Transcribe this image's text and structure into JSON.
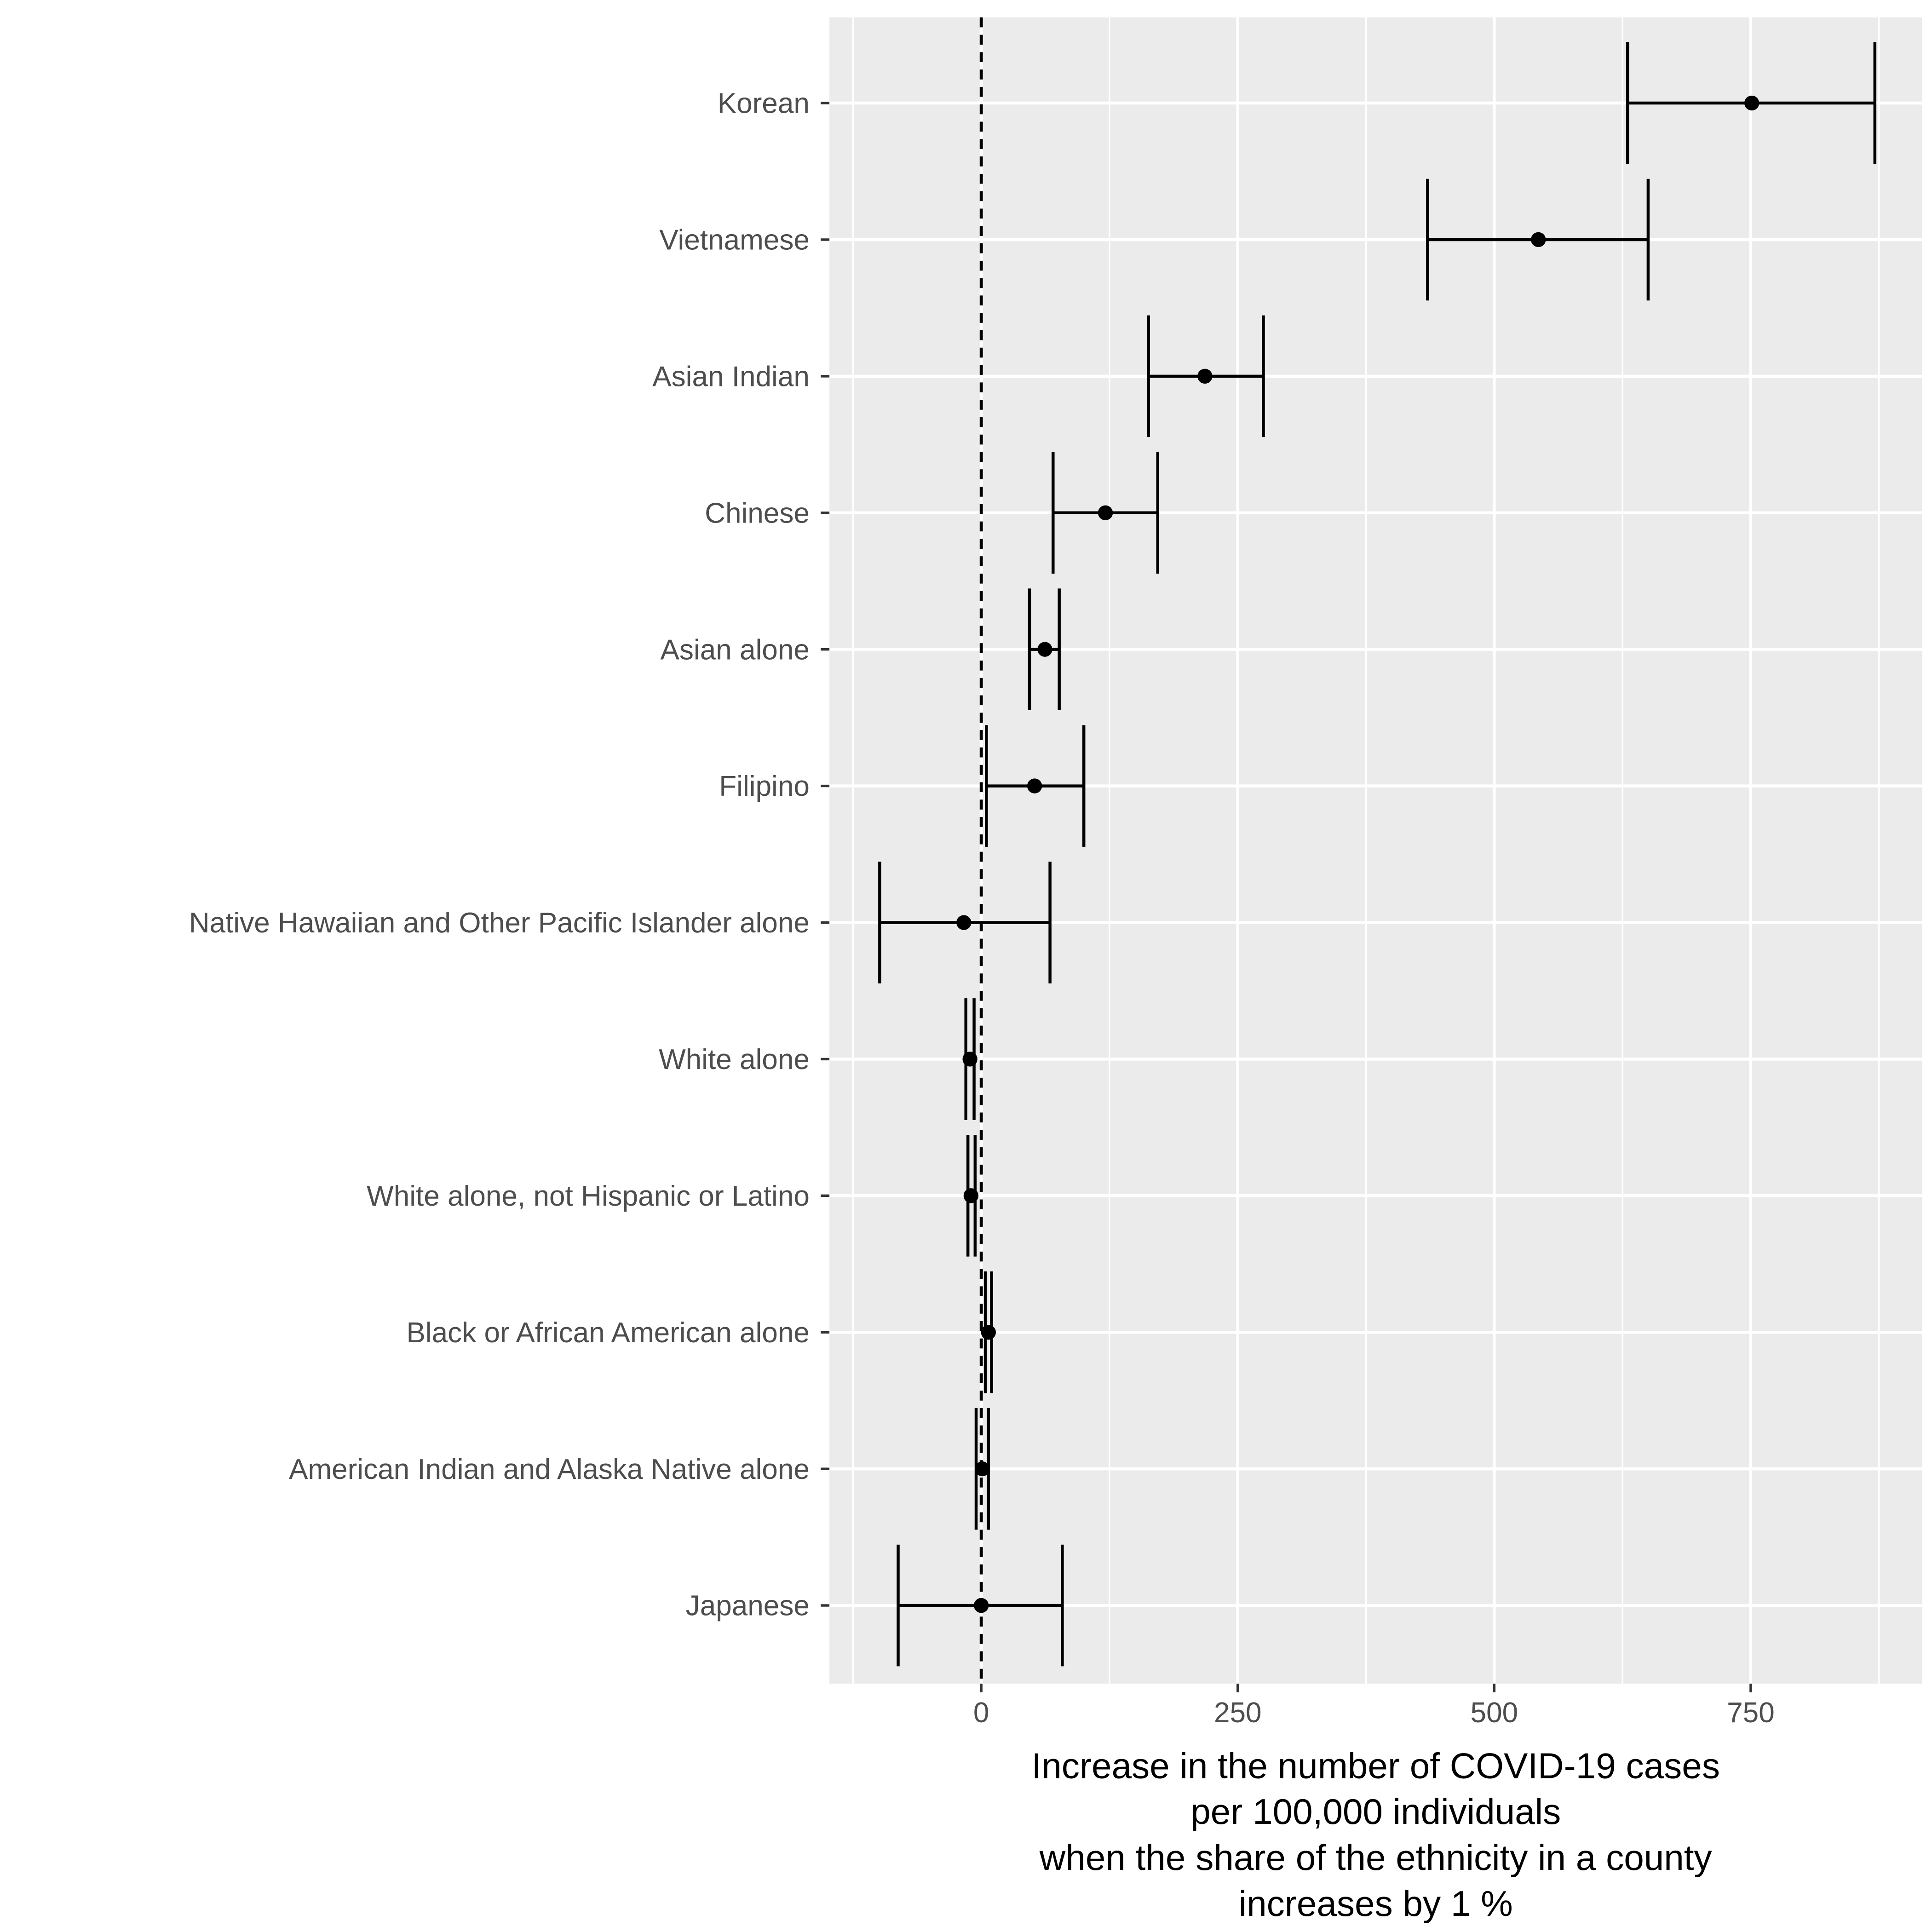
{
  "chart_data": {
    "type": "scatter",
    "subtype": "point-range / coefficient plot with horizontal error bars",
    "title": "",
    "xlabel": [
      "Increase in the number of COVID-19 cases",
      "per 100,000 individuals",
      "when the share of the ethnicity in a county",
      "increases by 1 %"
    ],
    "ylabel": "",
    "xlim": [
      -148,
      917
    ],
    "x_ticks": [
      0,
      250,
      500,
      750
    ],
    "x_tick_labels": [
      "0",
      "250",
      "500",
      "750"
    ],
    "reference_line": {
      "x": 0,
      "style": "dashed"
    },
    "grid": true,
    "categories": [
      "Korean",
      "Vietnamese",
      "Asian Indian",
      "Chinese",
      "Asian alone",
      "Filipino",
      "Native Hawaiian and Other Pacific Islander alone",
      "White alone",
      "White alone, not Hispanic or Latino",
      "Black or African American alone",
      "American Indian and Alaska Native alone",
      "Japanese"
    ],
    "estimates": [
      751,
      543,
      218,
      121,
      62,
      52,
      -17,
      -11,
      -10,
      7,
      1,
      0
    ],
    "lower": [
      630,
      435,
      163,
      70,
      47,
      5,
      -99,
      -15,
      -13,
      4,
      -5,
      -81
    ],
    "upper": [
      871,
      650,
      275,
      172,
      76,
      100,
      67,
      -7,
      -6,
      10,
      7,
      79
    ],
    "colors": {
      "panel": "#ebebeb",
      "grid": "#ffffff",
      "marks": "#000000"
    }
  }
}
